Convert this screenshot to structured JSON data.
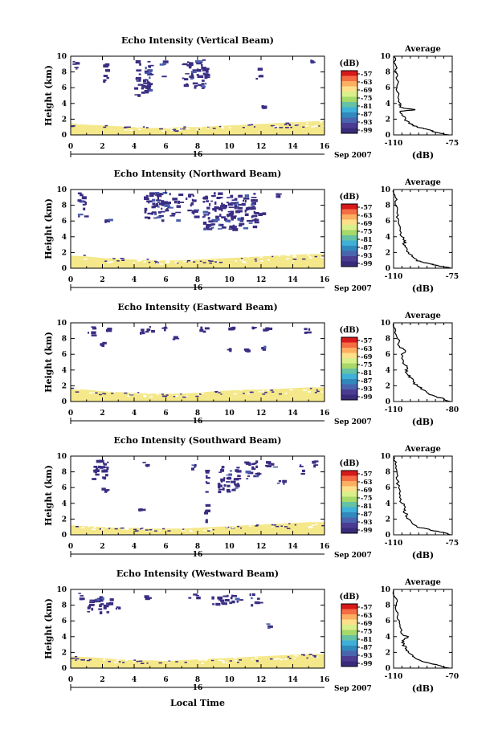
{
  "figure": {
    "xlabel": "Local Time",
    "date_suffix": "Sep 2007",
    "date_day": "16",
    "colorbar_unit": "(dB)",
    "colorbar_ticks": [
      "-57",
      "-63",
      "-69",
      "-75",
      "-81",
      "-87",
      "-93",
      "-99"
    ],
    "colorbar_colors": [
      "#d7191c",
      "#f46d43",
      "#fdae61",
      "#fee08b",
      "#d9ef8b",
      "#a6d96a",
      "#66c2a5",
      "#3fb0d8",
      "#3288bd",
      "#4a64b0",
      "#4b3c92",
      "#3a2b7a"
    ]
  },
  "chart_data": [
    {
      "type": "heatmap",
      "title": "Echo Intensity (Vertical Beam)",
      "ylabel": "Height (km)",
      "xlim": [
        0,
        16
      ],
      "ylim": [
        0,
        10
      ],
      "x_ticks": [
        "0",
        "2",
        "4",
        "6",
        "8",
        "10",
        "12",
        "14",
        "16"
      ],
      "y_ticks": [
        "0",
        "2",
        "4",
        "6",
        "8",
        "10"
      ],
      "clouds": [
        [
          0.1,
          0.6,
          8.3,
          9.7
        ],
        [
          2.0,
          2.3,
          6.5,
          9.3
        ],
        [
          3.9,
          5.0,
          5.0,
          9.7
        ],
        [
          5.6,
          5.9,
          7.5,
          9.5
        ],
        [
          7.0,
          8.6,
          6.0,
          9.7
        ],
        [
          11.6,
          11.9,
          7.0,
          8.6
        ],
        [
          15.1,
          15.3,
          9.2,
          9.6
        ],
        [
          12.0,
          12.2,
          3.6,
          3.8
        ]
      ],
      "boundary_layer_top": [
        1.5,
        1.3,
        1.2,
        1.1,
        1.0,
        0.9,
        0.9,
        1.0,
        1.0,
        1.1,
        1.2,
        1.3,
        1.4,
        1.5,
        1.6,
        1.7,
        1.8
      ],
      "average": {
        "title": "Average",
        "xlabel": "(dB)",
        "xlim": [
          -110,
          -75
        ],
        "x_ticks": [
          "-110",
          "-75"
        ],
        "y_ticks": [
          "0",
          "2",
          "4",
          "6",
          "8",
          "10"
        ],
        "profile": [
          [
            0.0,
            -77
          ],
          [
            0.2,
            -82
          ],
          [
            0.4,
            -86
          ],
          [
            0.6,
            -88
          ],
          [
            0.8,
            -92
          ],
          [
            1.0,
            -96
          ],
          [
            1.2,
            -98
          ],
          [
            1.5,
            -101
          ],
          [
            2.0,
            -103
          ],
          [
            2.5,
            -105
          ],
          [
            3.0,
            -106
          ],
          [
            3.2,
            -97
          ],
          [
            3.4,
            -104
          ],
          [
            3.6,
            -106
          ],
          [
            4.0,
            -106
          ],
          [
            5.0,
            -107
          ],
          [
            6.0,
            -108
          ],
          [
            7.0,
            -108
          ],
          [
            8.0,
            -109
          ],
          [
            9.0,
            -109
          ],
          [
            10.0,
            -110
          ]
        ]
      }
    },
    {
      "type": "heatmap",
      "title": "Echo Intensity (Northward Beam)",
      "ylabel": "Height (km)",
      "xlim": [
        0,
        16
      ],
      "ylim": [
        0,
        10
      ],
      "x_ticks": [
        "0",
        "2",
        "4",
        "6",
        "8",
        "10",
        "12",
        "14",
        "16"
      ],
      "y_ticks": [
        "0",
        "2",
        "4",
        "6",
        "8",
        "10"
      ],
      "clouds": [
        [
          0.4,
          0.9,
          6.5,
          9.7
        ],
        [
          2.1,
          2.4,
          6.0,
          6.5
        ],
        [
          4.6,
          6.8,
          6.2,
          9.7
        ],
        [
          7.2,
          7.8,
          6.6,
          9.7
        ],
        [
          8.3,
          11.6,
          5.0,
          9.7
        ],
        [
          11.8,
          12.2,
          6.8,
          7.2
        ],
        [
          12.8,
          13.1,
          9.2,
          9.6
        ]
      ],
      "boundary_layer_top": [
        1.6,
        1.5,
        1.3,
        1.2,
        1.1,
        1.0,
        1.0,
        1.0,
        1.1,
        1.2,
        1.3,
        1.4,
        1.5,
        1.6,
        1.7,
        1.8,
        1.8
      ],
      "average": {
        "title": "Average",
        "xlabel": "(dB)",
        "xlim": [
          -110,
          -75
        ],
        "x_ticks": [
          "-110",
          "-75"
        ],
        "y_ticks": [
          "0",
          "2",
          "4",
          "6",
          "8",
          "10"
        ],
        "profile": [
          [
            0.0,
            -76
          ],
          [
            0.2,
            -80
          ],
          [
            0.4,
            -85
          ],
          [
            0.6,
            -89
          ],
          [
            0.8,
            -93
          ],
          [
            1.0,
            -96
          ],
          [
            1.5,
            -99
          ],
          [
            2.0,
            -101
          ],
          [
            2.5,
            -102
          ],
          [
            3.0,
            -104
          ],
          [
            3.5,
            -103
          ],
          [
            4.0,
            -105
          ],
          [
            5.0,
            -106
          ],
          [
            6.0,
            -107
          ],
          [
            7.0,
            -108
          ],
          [
            8.0,
            -109
          ],
          [
            9.0,
            -109
          ],
          [
            10.0,
            -110
          ]
        ]
      }
    },
    {
      "type": "heatmap",
      "title": "Echo Intensity (Eastward Beam)",
      "ylabel": "Height (km)",
      "xlim": [
        0,
        16
      ],
      "ylim": [
        0,
        10
      ],
      "x_ticks": [
        "0",
        "2",
        "4",
        "6",
        "8",
        "10",
        "12",
        "14",
        "16"
      ],
      "y_ticks": [
        "0",
        "2",
        "4",
        "6",
        "8",
        "10"
      ],
      "clouds": [
        [
          1.0,
          1.5,
          8.5,
          9.6
        ],
        [
          2.0,
          2.3,
          9.0,
          9.5
        ],
        [
          4.3,
          5.2,
          8.5,
          9.6
        ],
        [
          5.7,
          6.1,
          9.2,
          9.6
        ],
        [
          6.4,
          6.6,
          8.0,
          8.4
        ],
        [
          7.8,
          8.6,
          9.0,
          9.6
        ],
        [
          9.5,
          10.2,
          9.0,
          9.6
        ],
        [
          11.3,
          11.6,
          9.2,
          9.6
        ],
        [
          12.1,
          12.4,
          9.2,
          9.6
        ],
        [
          14.7,
          15.0,
          8.8,
          9.4
        ],
        [
          9.8,
          10.0,
          6.5,
          6.9
        ],
        [
          10.9,
          11.1,
          6.5,
          6.9
        ],
        [
          12.0,
          12.2,
          6.8,
          7.2
        ],
        [
          1.8,
          2.0,
          7.2,
          7.6
        ]
      ],
      "boundary_layer_top": [
        1.6,
        1.5,
        1.3,
        1.2,
        1.1,
        1.0,
        1.0,
        1.0,
        1.1,
        1.3,
        1.4,
        1.5,
        1.5,
        1.6,
        1.7,
        1.8,
        1.8
      ],
      "average": {
        "title": "Average",
        "xlabel": "(dB)",
        "xlim": [
          -110,
          -80
        ],
        "x_ticks": [
          "-110",
          "-80"
        ],
        "y_ticks": [
          "0",
          "2",
          "4",
          "6",
          "8",
          "10"
        ],
        "profile": [
          [
            0.0,
            -81
          ],
          [
            0.3,
            -84
          ],
          [
            0.6,
            -88
          ],
          [
            1.0,
            -92
          ],
          [
            1.5,
            -95
          ],
          [
            2.0,
            -98
          ],
          [
            2.5,
            -100
          ],
          [
            3.0,
            -101
          ],
          [
            3.5,
            -103
          ],
          [
            4.0,
            -104
          ],
          [
            4.5,
            -103
          ],
          [
            5.0,
            -105
          ],
          [
            6.0,
            -106
          ],
          [
            6.5,
            -104
          ],
          [
            7.0,
            -107
          ],
          [
            8.0,
            -108
          ],
          [
            9.0,
            -109
          ],
          [
            10.0,
            -110
          ]
        ]
      }
    },
    {
      "type": "heatmap",
      "title": "Echo Intensity (Southward Beam)",
      "ylabel": "Height (km)",
      "xlim": [
        0,
        16
      ],
      "ylim": [
        0,
        10
      ],
      "x_ticks": [
        "0",
        "2",
        "4",
        "6",
        "8",
        "10",
        "12",
        "14",
        "16"
      ],
      "y_ticks": [
        "0",
        "2",
        "4",
        "6",
        "8",
        "10"
      ],
      "clouds": [
        [
          1.3,
          2.3,
          7.0,
          9.7
        ],
        [
          1.9,
          2.2,
          5.5,
          6.0
        ],
        [
          4.5,
          5.0,
          8.8,
          9.4
        ],
        [
          7.5,
          7.8,
          8.5,
          9.0
        ],
        [
          8.4,
          8.6,
          1.8,
          8.8
        ],
        [
          9.2,
          10.5,
          5.5,
          9.0
        ],
        [
          10.8,
          11.8,
          7.0,
          9.5
        ],
        [
          12.2,
          12.8,
          8.5,
          9.6
        ],
        [
          13.0,
          13.4,
          6.3,
          7.0
        ],
        [
          14.4,
          14.6,
          7.5,
          9.0
        ],
        [
          15.2,
          15.4,
          8.8,
          9.5
        ],
        [
          4.2,
          4.4,
          3.1,
          3.4
        ]
      ],
      "boundary_layer_top": [
        1.2,
        1.1,
        1.0,
        0.9,
        0.9,
        0.8,
        0.8,
        0.8,
        0.9,
        1.0,
        1.1,
        1.2,
        1.3,
        1.4,
        1.5,
        1.6,
        1.6
      ],
      "average": {
        "title": "Average",
        "xlabel": "(dB)",
        "xlim": [
          -110,
          -75
        ],
        "x_ticks": [
          "-110",
          "-75"
        ],
        "y_ticks": [
          "0",
          "2",
          "4",
          "6",
          "8",
          "10"
        ],
        "profile": [
          [
            0.0,
            -76
          ],
          [
            0.3,
            -80
          ],
          [
            0.5,
            -86
          ],
          [
            0.8,
            -91
          ],
          [
            1.0,
            -96
          ],
          [
            1.5,
            -99
          ],
          [
            2.0,
            -101
          ],
          [
            2.5,
            -102
          ],
          [
            3.0,
            -104
          ],
          [
            3.5,
            -103
          ],
          [
            4.0,
            -105
          ],
          [
            5.0,
            -106
          ],
          [
            6.0,
            -107
          ],
          [
            7.0,
            -108
          ],
          [
            8.0,
            -108
          ],
          [
            9.0,
            -109
          ],
          [
            10.0,
            -110
          ]
        ]
      }
    },
    {
      "type": "heatmap",
      "title": "Echo Intensity (Westward Beam)",
      "ylabel": "Height (km)",
      "xlim": [
        0,
        16
      ],
      "ylim": [
        0,
        10
      ],
      "x_ticks": [
        "0",
        "2",
        "4",
        "6",
        "8",
        "10",
        "12",
        "14",
        "16"
      ],
      "y_ticks": [
        "0",
        "2",
        "4",
        "6",
        "8",
        "10"
      ],
      "clouds": [
        [
          0.3,
          0.6,
          8.8,
          9.6
        ],
        [
          1.0,
          2.5,
          7.2,
          9.2
        ],
        [
          2.8,
          3.1,
          7.5,
          7.9
        ],
        [
          4.6,
          4.8,
          9.0,
          9.4
        ],
        [
          7.3,
          8.0,
          9.0,
          9.6
        ],
        [
          8.8,
          10.8,
          8.2,
          9.4
        ],
        [
          11.2,
          11.8,
          8.0,
          9.6
        ],
        [
          12.3,
          12.5,
          4.8,
          5.8
        ]
      ],
      "boundary_layer_top": [
        1.5,
        1.4,
        1.3,
        1.1,
        1.0,
        1.0,
        0.9,
        1.0,
        1.1,
        1.2,
        1.3,
        1.4,
        1.5,
        1.6,
        1.7,
        1.8,
        1.8
      ],
      "average": {
        "title": "Average",
        "xlabel": "(dB)",
        "xlim": [
          -110,
          -70
        ],
        "x_ticks": [
          "-110",
          "-70"
        ],
        "y_ticks": [
          "0",
          "2",
          "4",
          "6",
          "8",
          "10"
        ],
        "profile": [
          [
            0.0,
            -72
          ],
          [
            0.3,
            -78
          ],
          [
            0.6,
            -85
          ],
          [
            1.0,
            -92
          ],
          [
            1.5,
            -97
          ],
          [
            2.0,
            -100
          ],
          [
            2.5,
            -102
          ],
          [
            3.0,
            -103
          ],
          [
            3.5,
            -104
          ],
          [
            4.0,
            -100
          ],
          [
            4.3,
            -104
          ],
          [
            5.0,
            -105
          ],
          [
            6.0,
            -106
          ],
          [
            7.0,
            -107
          ],
          [
            8.0,
            -108
          ],
          [
            9.0,
            -109
          ],
          [
            10.0,
            -110
          ]
        ]
      }
    }
  ]
}
